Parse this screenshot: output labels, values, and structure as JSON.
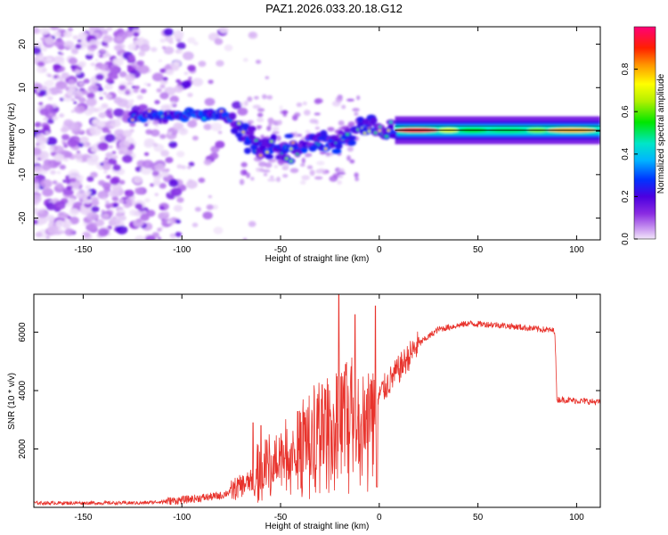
{
  "title": "PAZ1.2026.033.20.18.G12",
  "chart_data": [
    {
      "type": "heatmap",
      "xlabel": "Height of straight line (km)",
      "ylabel": "Frequency (Hz)",
      "xlim": [
        -175,
        112
      ],
      "ylim": [
        -25,
        24
      ],
      "x_ticks": [
        -150,
        -100,
        -50,
        0,
        50,
        100
      ],
      "y_ticks": [
        -20,
        -10,
        0,
        10,
        20
      ],
      "colorbar": {
        "label": "Normalized spectral amplitude",
        "range": [
          0,
          1
        ],
        "ticks": [
          "0.0",
          "0.2",
          "0.4",
          "0.6",
          "0.8"
        ]
      },
      "ridge": [
        {
          "x": -120,
          "y": 3.2
        },
        {
          "x": -100,
          "y": 3.8
        },
        {
          "x": -80,
          "y": 3.6
        },
        {
          "x": -72,
          "y": 1.5
        },
        {
          "x": -65,
          "y": -2.5
        },
        {
          "x": -55,
          "y": -4.5
        },
        {
          "x": -40,
          "y": -3.5
        },
        {
          "x": -25,
          "y": -2.5
        },
        {
          "x": -15,
          "y": -1.5
        },
        {
          "x": -8,
          "y": 1.5
        },
        {
          "x": 0,
          "y": 0.5
        },
        {
          "x": 8,
          "y": 0.0
        },
        {
          "x": 50,
          "y": 0.2
        },
        {
          "x": 112,
          "y": 0.2
        }
      ]
    },
    {
      "type": "line",
      "xlabel": "Height of straight line (km)",
      "ylabel": "SNR (10 * v/v)",
      "xlim": [
        -175,
        112
      ],
      "ylim": [
        0,
        7300
      ],
      "x_ticks": [
        -150,
        -100,
        -50,
        0,
        50,
        100
      ],
      "y_ticks": [
        2000,
        4000,
        6000
      ],
      "series": [
        {
          "name": "SNR",
          "color": "#e8332c",
          "envelope": [
            {
              "x": -175,
              "y": 150
            },
            {
              "x": -120,
              "y": 150
            },
            {
              "x": -100,
              "y": 250
            },
            {
              "x": -80,
              "y": 400
            },
            {
              "x": -65,
              "y": 900
            },
            {
              "x": -50,
              "y": 1800
            },
            {
              "x": -30,
              "y": 2800
            },
            {
              "x": -15,
              "y": 3100
            },
            {
              "x": -5,
              "y": 3400
            },
            {
              "x": 5,
              "y": 4300
            },
            {
              "x": 20,
              "y": 5600
            },
            {
              "x": 30,
              "y": 6100
            },
            {
              "x": 45,
              "y": 6300
            },
            {
              "x": 60,
              "y": 6250
            },
            {
              "x": 89,
              "y": 6050
            },
            {
              "x": 90,
              "y": 3700
            },
            {
              "x": 112,
              "y": 3600
            }
          ]
        }
      ]
    }
  ]
}
